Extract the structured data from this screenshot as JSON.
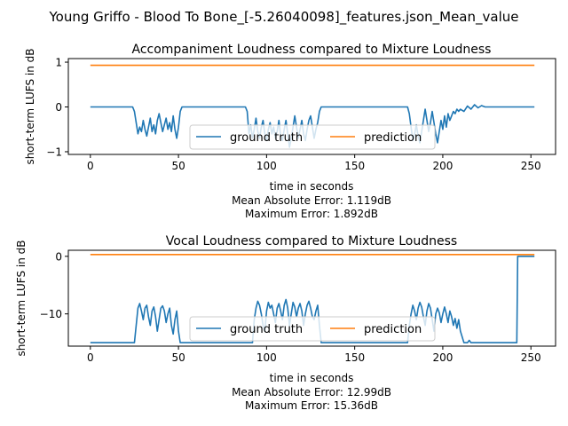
{
  "figure": {
    "suptitle": "Young Griffo - Blood To Bone_[-5.26040098]_features.json_Mean_value"
  },
  "chart_data": [
    {
      "type": "line",
      "title": "Accompaniment Loudness compared to Mixture Loudness",
      "xlabel": "time in seconds",
      "ylabel": "short-term LUFS in dB",
      "xlim": [
        -12.5,
        264
      ],
      "ylim": [
        -1.06,
        1.08
      ],
      "xticks": [
        0,
        50,
        100,
        150,
        200,
        250
      ],
      "yticks": [
        -1,
        0,
        1
      ],
      "legend_position": "lower center",
      "metrics": [
        "Mean Absolute Error: 1.119dB",
        "Maximum Error: 1.892dB"
      ],
      "series": [
        {
          "name": "ground truth",
          "color": "#1f77b4",
          "points": [
            [
              0,
              0
            ],
            [
              24,
              0
            ],
            [
              25,
              -0.1
            ],
            [
              26,
              -0.35
            ],
            [
              27,
              -0.6
            ],
            [
              28,
              -0.45
            ],
            [
              29,
              -0.55
            ],
            [
              30,
              -0.3
            ],
            [
              31,
              -0.5
            ],
            [
              32,
              -0.65
            ],
            [
              33,
              -0.45
            ],
            [
              34,
              -0.25
            ],
            [
              35,
              -0.55
            ],
            [
              36,
              -0.4
            ],
            [
              37,
              -0.6
            ],
            [
              38,
              -0.3
            ],
            [
              39,
              -0.15
            ],
            [
              40,
              -0.35
            ],
            [
              41,
              -0.55
            ],
            [
              42,
              -0.4
            ],
            [
              43,
              -0.25
            ],
            [
              44,
              -0.5
            ],
            [
              45,
              -0.35
            ],
            [
              46,
              -0.55
            ],
            [
              47,
              -0.2
            ],
            [
              48,
              -0.5
            ],
            [
              49,
              -0.7
            ],
            [
              50,
              -0.45
            ],
            [
              51,
              -0.1
            ],
            [
              52,
              0
            ],
            [
              88,
              0
            ],
            [
              89,
              -0.1
            ],
            [
              90,
              -0.6
            ],
            [
              91,
              -0.4
            ],
            [
              92,
              -0.7
            ],
            [
              93,
              -0.5
            ],
            [
              94,
              -0.25
            ],
            [
              95,
              -0.55
            ],
            [
              96,
              -0.7
            ],
            [
              97,
              -0.45
            ],
            [
              98,
              -0.3
            ],
            [
              99,
              -0.6
            ],
            [
              100,
              -0.75
            ],
            [
              101,
              -0.5
            ],
            [
              102,
              -0.35
            ],
            [
              103,
              -0.6
            ],
            [
              104,
              -0.45
            ],
            [
              105,
              -0.7
            ],
            [
              106,
              -0.55
            ],
            [
              107,
              -0.3
            ],
            [
              108,
              -0.65
            ],
            [
              109,
              -0.75
            ],
            [
              110,
              -0.5
            ],
            [
              111,
              -0.3
            ],
            [
              112,
              -0.6
            ],
            [
              113,
              -0.9
            ],
            [
              114,
              -0.7
            ],
            [
              115,
              -0.45
            ],
            [
              116,
              -0.2
            ],
            [
              117,
              -0.45
            ],
            [
              118,
              -0.7
            ],
            [
              119,
              -0.5
            ],
            [
              120,
              -0.3
            ],
            [
              121,
              -0.6
            ],
            [
              122,
              -0.75
            ],
            [
              123,
              -0.5
            ],
            [
              124,
              -0.3
            ],
            [
              125,
              -0.2
            ],
            [
              126,
              -0.45
            ],
            [
              127,
              -0.7
            ],
            [
              128,
              -0.5
            ],
            [
              129,
              -0.35
            ],
            [
              130,
              -0.1
            ],
            [
              131,
              0
            ],
            [
              180,
              0
            ],
            [
              181,
              -0.15
            ],
            [
              182,
              -0.45
            ],
            [
              183,
              -0.75
            ],
            [
              184,
              -0.6
            ],
            [
              185,
              -0.4
            ],
            [
              186,
              -0.65
            ],
            [
              187,
              -0.8
            ],
            [
              188,
              -0.55
            ],
            [
              189,
              -0.3
            ],
            [
              190,
              -0.05
            ],
            [
              191,
              -0.3
            ],
            [
              192,
              -0.55
            ],
            [
              193,
              -0.35
            ],
            [
              194,
              -0.1
            ],
            [
              195,
              -0.35
            ],
            [
              196,
              -0.6
            ],
            [
              197,
              -0.8
            ],
            [
              198,
              -0.55
            ],
            [
              199,
              -0.3
            ],
            [
              200,
              -0.5
            ],
            [
              201,
              -0.2
            ],
            [
              202,
              -0.45
            ],
            [
              203,
              -0.15
            ],
            [
              204,
              -0.3
            ],
            [
              205,
              -0.2
            ],
            [
              206,
              -0.1
            ],
            [
              207,
              -0.15
            ],
            [
              208,
              -0.05
            ],
            [
              209,
              -0.1
            ],
            [
              210,
              -0.05
            ],
            [
              212,
              -0.1
            ],
            [
              214,
              0.02
            ],
            [
              216,
              -0.05
            ],
            [
              218,
              0.05
            ],
            [
              220,
              -0.02
            ],
            [
              222,
              0.03
            ],
            [
              224,
              0
            ],
            [
              252,
              0
            ]
          ]
        },
        {
          "name": "prediction",
          "color": "#ff7f0e",
          "points": [
            [
              0,
              0.93
            ],
            [
              252,
              0.93
            ]
          ]
        }
      ]
    },
    {
      "type": "line",
      "title": "Vocal Loudness compared to Mixture Loudness",
      "xlabel": "time in seconds",
      "ylabel": "short-term LUFS in dB",
      "xlim": [
        -12.5,
        264
      ],
      "ylim": [
        -15.6,
        1.05
      ],
      "xticks": [
        0,
        50,
        100,
        150,
        200,
        250
      ],
      "yticks": [
        -10,
        0
      ],
      "legend_position": "lower center",
      "metrics": [
        "Mean Absolute Error: 12.99dB",
        "Maximum Error: 15.36dB"
      ],
      "series": [
        {
          "name": "ground truth",
          "color": "#1f77b4",
          "points": [
            [
              0,
              -15
            ],
            [
              25,
              -15
            ],
            [
              26,
              -12
            ],
            [
              27,
              -9
            ],
            [
              28,
              -8.2
            ],
            [
              29,
              -9.5
            ],
            [
              30,
              -11
            ],
            [
              31,
              -9
            ],
            [
              32,
              -8.5
            ],
            [
              33,
              -10.5
            ],
            [
              34,
              -12
            ],
            [
              35,
              -9.5
            ],
            [
              36,
              -8.8
            ],
            [
              37,
              -10.5
            ],
            [
              38,
              -13
            ],
            [
              39,
              -11
            ],
            [
              40,
              -9
            ],
            [
              41,
              -8.6
            ],
            [
              42,
              -9.5
            ],
            [
              43,
              -11.5
            ],
            [
              44,
              -10
            ],
            [
              45,
              -9
            ],
            [
              46,
              -12
            ],
            [
              47,
              -13.5
            ],
            [
              48,
              -11
            ],
            [
              49,
              -9.5
            ],
            [
              50,
              -13
            ],
            [
              51,
              -15
            ],
            [
              92,
              -15
            ],
            [
              93,
              -11
            ],
            [
              94,
              -9
            ],
            [
              95,
              -7.8
            ],
            [
              96,
              -8.5
            ],
            [
              97,
              -10
            ],
            [
              98,
              -12
            ],
            [
              99,
              -13
            ],
            [
              100,
              -9.5
            ],
            [
              101,
              -8
            ],
            [
              102,
              -9
            ],
            [
              103,
              -8.5
            ],
            [
              104,
              -10
            ],
            [
              105,
              -11.5
            ],
            [
              106,
              -9
            ],
            [
              107,
              -8.2
            ],
            [
              108,
              -9.5
            ],
            [
              109,
              -11
            ],
            [
              110,
              -8.5
            ],
            [
              111,
              -7.5
            ],
            [
              112,
              -9
            ],
            [
              113,
              -12
            ],
            [
              114,
              -10
            ],
            [
              115,
              -8
            ],
            [
              116,
              -8.8
            ],
            [
              117,
              -10.5
            ],
            [
              118,
              -9
            ],
            [
              119,
              -8.2
            ],
            [
              120,
              -9.5
            ],
            [
              121,
              -12
            ],
            [
              122,
              -10
            ],
            [
              123,
              -8.5
            ],
            [
              124,
              -7.8
            ],
            [
              125,
              -9
            ],
            [
              126,
              -10.5
            ],
            [
              127,
              -11
            ],
            [
              128,
              -9.5
            ],
            [
              129,
              -8.5
            ],
            [
              130,
              -12
            ],
            [
              131,
              -15
            ],
            [
              180,
              -15
            ],
            [
              181,
              -12
            ],
            [
              182,
              -10
            ],
            [
              183,
              -8.5
            ],
            [
              184,
              -9.5
            ],
            [
              185,
              -11
            ],
            [
              186,
              -9
            ],
            [
              187,
              -8
            ],
            [
              188,
              -8.8
            ],
            [
              189,
              -10.5
            ],
            [
              190,
              -12
            ],
            [
              191,
              -9.5
            ],
            [
              192,
              -8.2
            ],
            [
              193,
              -9
            ],
            [
              194,
              -11
            ],
            [
              195,
              -13
            ],
            [
              196,
              -10
            ],
            [
              197,
              -9
            ],
            [
              198,
              -9.8
            ],
            [
              199,
              -11.5
            ],
            [
              200,
              -10
            ],
            [
              201,
              -8.8
            ],
            [
              202,
              -10
            ],
            [
              203,
              -11.5
            ],
            [
              204,
              -9.5
            ],
            [
              205,
              -10.5
            ],
            [
              206,
              -12
            ],
            [
              207,
              -10.8
            ],
            [
              208,
              -12.5
            ],
            [
              209,
              -11
            ],
            [
              210,
              -13
            ],
            [
              211,
              -14
            ],
            [
              212,
              -15
            ],
            [
              214,
              -15
            ],
            [
              215,
              -14.6
            ],
            [
              216,
              -15
            ],
            [
              242,
              -15
            ],
            [
              242.5,
              0
            ],
            [
              252,
              0
            ]
          ]
        },
        {
          "name": "prediction",
          "color": "#ff7f0e",
          "points": [
            [
              0,
              0.3
            ],
            [
              252,
              0.3
            ]
          ]
        }
      ]
    }
  ]
}
